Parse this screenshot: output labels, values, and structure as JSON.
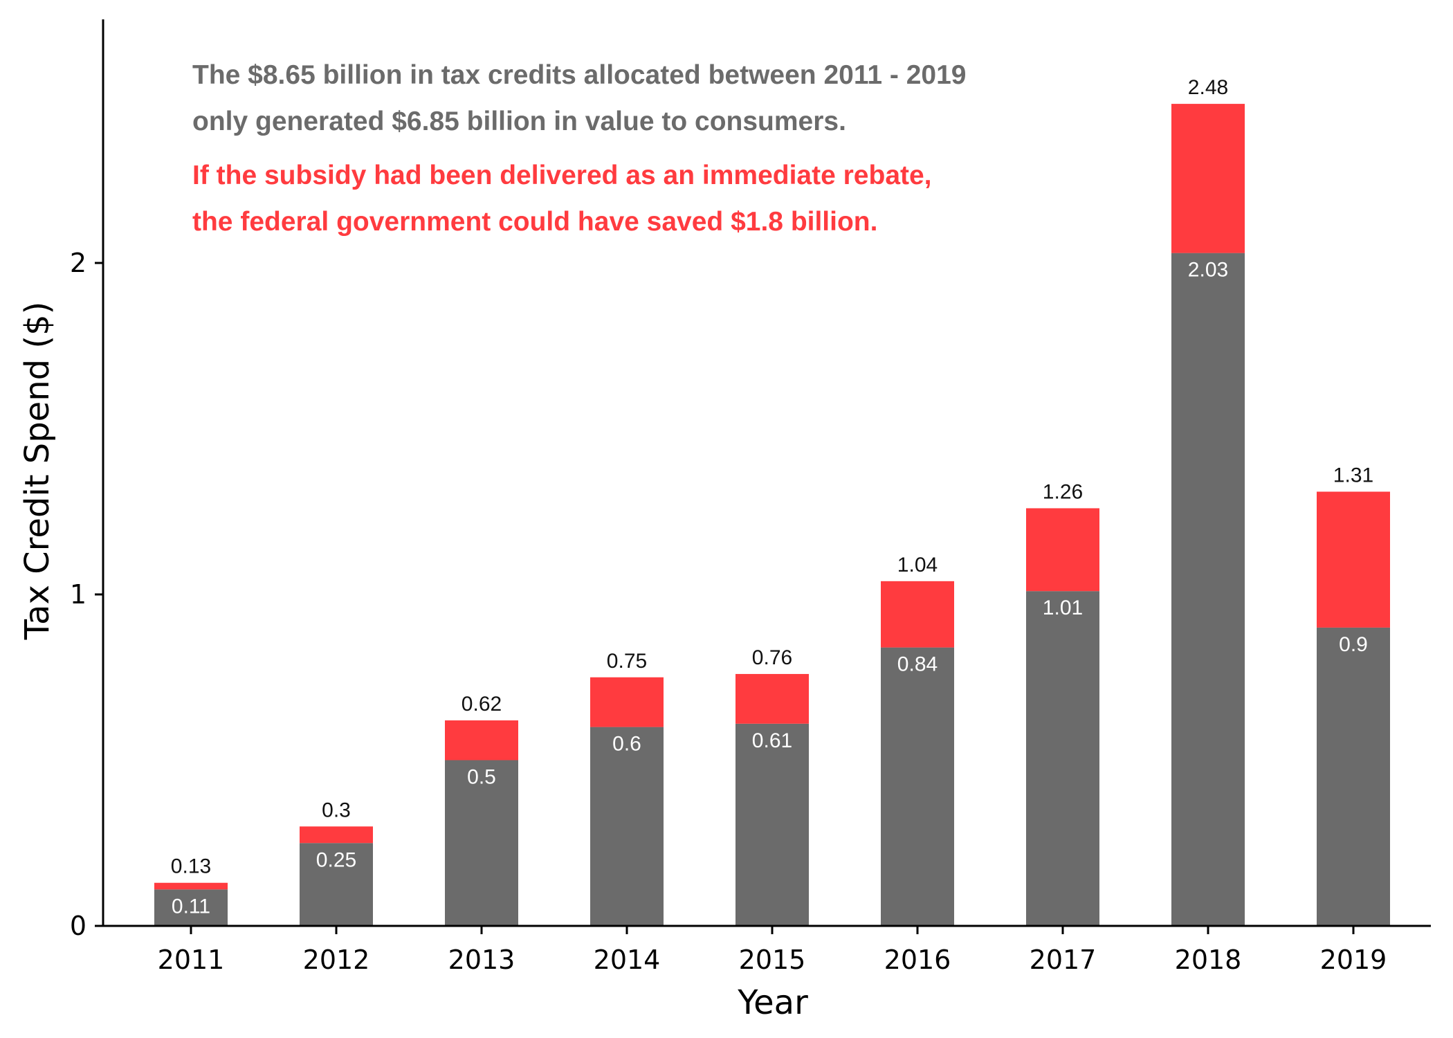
{
  "chart_data": {
    "type": "bar",
    "stacked": true,
    "categories": [
      "2011",
      "2012",
      "2013",
      "2014",
      "2015",
      "2016",
      "2017",
      "2018",
      "2019"
    ],
    "series": [
      {
        "values": [
          0.11,
          0.25,
          0.5,
          0.6,
          0.61,
          0.84,
          1.01,
          2.03,
          0.9
        ],
        "color": "#6b6b6b"
      },
      {
        "values": [
          0.02,
          0.05,
          0.12,
          0.15,
          0.15,
          0.2,
          0.25,
          0.45,
          0.41
        ],
        "color": "#ff3b3f"
      }
    ],
    "inner_labels": [
      "0.11",
      "0.25",
      "0.5",
      "0.6",
      "0.61",
      "0.84",
      "1.01",
      "2.03",
      "0.9"
    ],
    "total_labels": [
      "0.13",
      "0.3",
      "0.62",
      "0.75",
      "0.76",
      "1.04",
      "1.26",
      "2.48",
      "1.31"
    ],
    "xlabel": "Year",
    "ylabel": "Tax Credit Spend ($)",
    "yticks": [
      "0",
      "1",
      "2"
    ],
    "ylim": [
      0,
      2.73
    ],
    "grid": false,
    "annotations": [
      {
        "text": "The $8.65 billion in tax credits allocated between 2011 - 2019",
        "color": "#6b6b6b"
      },
      {
        "text": "only generated $6.85 billion in value to consumers.",
        "color": "#6b6b6b"
      },
      {
        "text": "If the subsidy had been delivered as an immediate rebate,",
        "color": "#ff3b3f"
      },
      {
        "text": "the federal government could have saved $1.8 billion.",
        "color": "#ff3b3f"
      }
    ]
  }
}
